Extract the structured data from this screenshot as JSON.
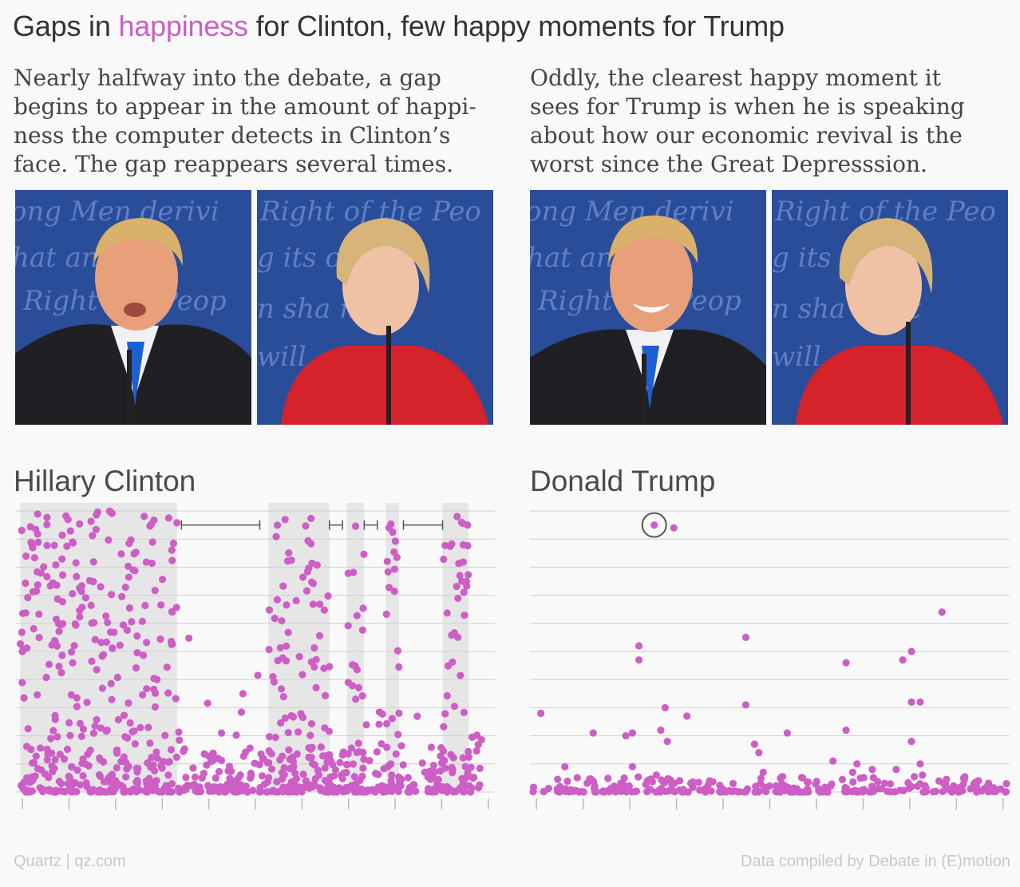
{
  "header": {
    "title_before": "Gaps in ",
    "title_highlight": "happiness",
    "title_after": " for Clinton, few happy moments for Trump",
    "highlight_color": "#cd5ec5"
  },
  "paragraphs": {
    "left": [
      "Nearly halfway into the debate, a gap",
      "begins to appear in the amount of happi-",
      "ness the computer detects in Clinton’s",
      "face. The gap reappears several times."
    ],
    "right": [
      "Oddly, the clearest happy moment it",
      "sees for Trump is when he is speaking",
      "about how our economic revival is the",
      "worst since the Great Depresssion."
    ]
  },
  "photos": {
    "background_text": [
      "ong Men derivi",
      "hat any",
      "Right the Peop"
    ],
    "background_text_2": [
      "Right of the Peo",
      "g its on o",
      "n sha most",
      "will"
    ]
  },
  "footer": {
    "source_left": "Quartz | qz.com",
    "source_right": "Data compiled by Debate in (E)motion"
  },
  "colors": {
    "dot": "#cd5ec5",
    "shade": "#e6e6e6",
    "grid": "#d0d0d0",
    "text": "#333333"
  },
  "chart_data": [
    {
      "type": "scatter",
      "title": "Hillary Clinton",
      "xlabel": "",
      "ylabel": "",
      "x_range": [
        0,
        11
      ],
      "y_range": [
        0,
        10
      ],
      "grid": true,
      "x_ticks": 11,
      "shaded_ranges": [
        [
          0.1,
          3.7
        ],
        [
          5.8,
          7.2
        ],
        [
          7.6,
          8.0
        ],
        [
          8.5,
          8.8
        ],
        [
          9.8,
          10.4
        ]
      ],
      "gap_brackets": [
        [
          3.8,
          5.6
        ],
        [
          7.2,
          7.5
        ],
        [
          8.0,
          8.3
        ],
        [
          8.9,
          9.8
        ]
      ],
      "points": "dense scatter, approx. 900 observations concentrated near y=0; high-happiness clusters inside shaded ranges"
    },
    {
      "type": "scatter",
      "title": "Donald Trump",
      "xlabel": "",
      "ylabel": "",
      "x_range": [
        0,
        11
      ],
      "y_range": [
        0,
        10
      ],
      "grid": true,
      "x_ticks": 11,
      "highlighted_point": {
        "x": 2.85,
        "y": 9.5
      },
      "points": [
        [
          2.85,
          9.5
        ],
        [
          3.3,
          9.4
        ],
        [
          9.45,
          6.4
        ],
        [
          4.95,
          5.5
        ],
        [
          2.5,
          5.2
        ],
        [
          2.5,
          4.7
        ],
        [
          8.75,
          5.0
        ],
        [
          8.55,
          4.7
        ],
        [
          7.25,
          4.6
        ],
        [
          8.75,
          3.2
        ],
        [
          8.95,
          3.2
        ],
        [
          3.1,
          3.0
        ],
        [
          4.95,
          3.1
        ],
        [
          0.25,
          2.8
        ],
        [
          3.6,
          2.7
        ],
        [
          2.35,
          2.1
        ],
        [
          2.2,
          2.0
        ],
        [
          3.0,
          2.2
        ],
        [
          3.15,
          1.8
        ],
        [
          1.45,
          2.1
        ],
        [
          5.9,
          2.1
        ],
        [
          7.25,
          2.2
        ],
        [
          8.75,
          1.8
        ],
        [
          5.15,
          1.7
        ],
        [
          5.25,
          1.4
        ],
        [
          2.35,
          0.9
        ],
        [
          0.8,
          0.9
        ],
        [
          7.5,
          1.0
        ],
        [
          6.95,
          1.1
        ],
        [
          8.95,
          1.0
        ],
        [
          7.85,
          0.8
        ],
        [
          8.4,
          0.8
        ],
        [
          7.4,
          0.7
        ],
        [
          9.0,
          0.6
        ],
        [
          2.9,
          0.6
        ],
        [
          5.35,
          0.7
        ]
      ],
      "baseline_note": "most observations near y=0 across full x range"
    }
  ]
}
